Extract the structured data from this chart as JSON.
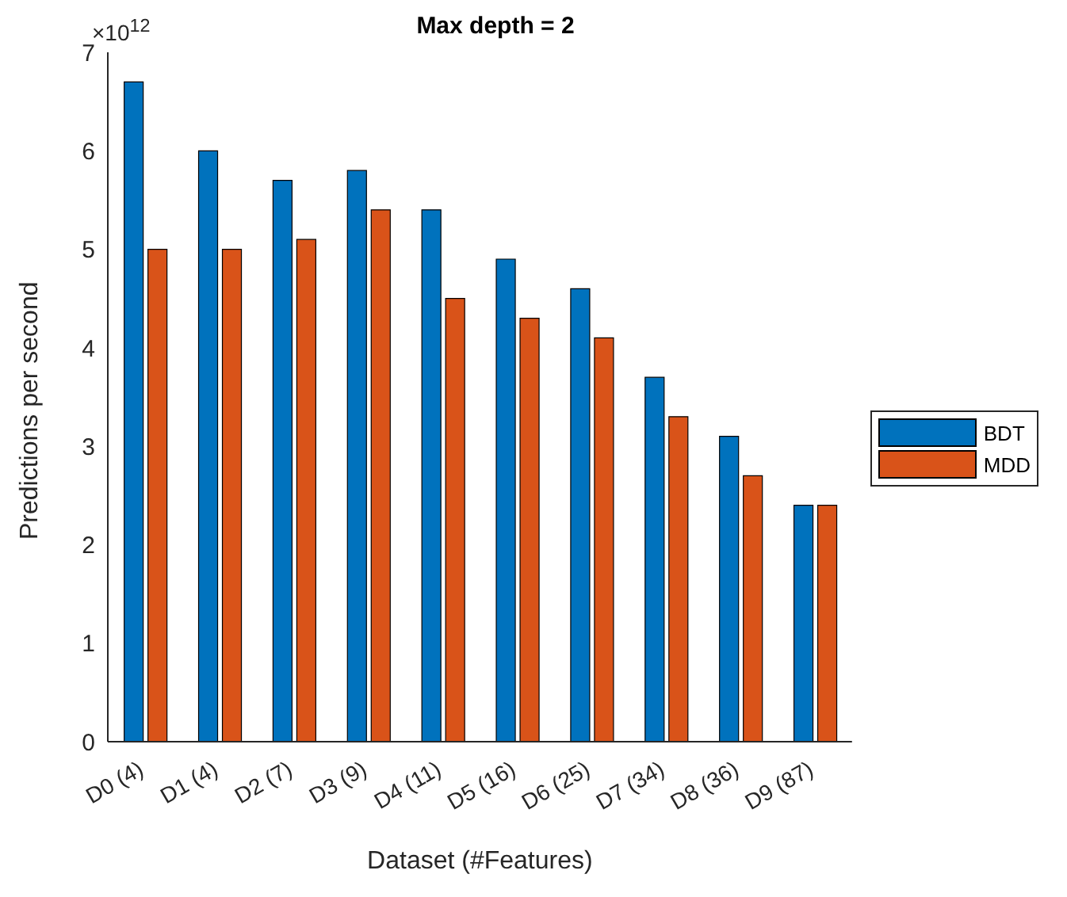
{
  "chart_data": {
    "type": "bar",
    "title": "Max depth = 2",
    "xlabel": "Dataset (#Features)",
    "ylabel": "Predictions per second",
    "annotations": [
      "×10$^{12}$"
    ],
    "categories": [
      "D0 (4)",
      "D1 (4)",
      "D2 (7)",
      "D3 (9)",
      "D4 (11)",
      "D5 (16)",
      "D6 (25)",
      "D7 (34)",
      "D8 (36)",
      "D9 (87)"
    ],
    "series": [
      {
        "name": "BDT",
        "color": "#0072bd",
        "values": [
          6.7,
          6.0,
          5.7,
          5.8,
          5.4,
          4.9,
          4.6,
          3.7,
          3.1,
          2.4
        ]
      },
      {
        "name": "MDD",
        "color": "#d95319",
        "values": [
          5.0,
          5.0,
          5.1,
          5.4,
          4.5,
          4.3,
          4.1,
          3.3,
          2.7,
          2.4
        ]
      }
    ],
    "ylim": [
      0,
      7
    ],
    "yticks": [
      0,
      1,
      2,
      3,
      4,
      5,
      6,
      7
    ],
    "grid": false,
    "legend": "right"
  }
}
